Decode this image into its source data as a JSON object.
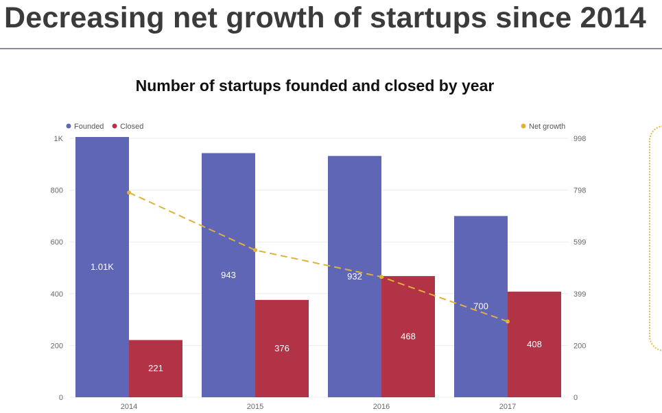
{
  "slide": {
    "title": "Decreasing net growth of startups since 2014"
  },
  "chart_data": {
    "type": "bar",
    "title": "Number of startups founded and closed by year",
    "categories": [
      "2014",
      "2015",
      "2016",
      "2017"
    ],
    "series": [
      {
        "name": "Founded",
        "type": "bar",
        "values": [
          1010,
          943,
          932,
          700
        ],
        "labels": [
          "1.01K",
          "943",
          "932",
          "700"
        ],
        "color": "#5f66b5"
      },
      {
        "name": "Closed",
        "type": "bar",
        "values": [
          221,
          376,
          468,
          408
        ],
        "labels": [
          "221",
          "376",
          "468",
          "408"
        ],
        "color": "#b33346"
      },
      {
        "name": "Net growth",
        "type": "line",
        "axis": "right",
        "values": [
          789,
          567,
          464,
          292
        ],
        "color": "#e0b23c",
        "line_style": "dashed"
      }
    ],
    "y_left": {
      "ticks": [
        "0",
        "200",
        "400",
        "600",
        "800",
        "1K"
      ],
      "ylim": [
        0,
        1000
      ]
    },
    "y_right": {
      "ticks": [
        "0",
        "200",
        "399",
        "599",
        "798",
        "998"
      ],
      "ylim": [
        0,
        998
      ]
    },
    "legend": {
      "left": [
        "Founded",
        "Closed"
      ],
      "right": [
        "Net growth"
      ],
      "placement": "top"
    },
    "grid": true
  }
}
